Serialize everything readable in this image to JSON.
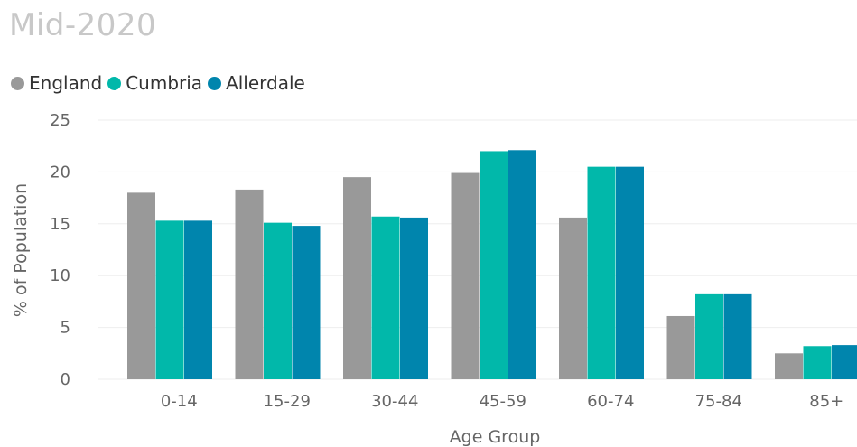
{
  "header": {
    "title": "Mid-2020"
  },
  "chart_data": {
    "type": "bar",
    "title": "Mid-2020",
    "xlabel": "Age Group",
    "ylabel": "% of Population",
    "ylim": [
      0,
      25
    ],
    "yticks": [
      0,
      5,
      10,
      15,
      20,
      25
    ],
    "grid": true,
    "legend_position": "top-left",
    "categories": [
      "0-14",
      "15-29",
      "30-44",
      "45-59",
      "60-74",
      "75-84",
      "85+"
    ],
    "series": [
      {
        "name": "England",
        "color": "#999999",
        "values": [
          18.0,
          18.3,
          19.5,
          19.9,
          15.6,
          6.1,
          2.5
        ]
      },
      {
        "name": "Cumbria",
        "color": "#01b8aa",
        "values": [
          15.3,
          15.1,
          15.7,
          22.0,
          20.5,
          8.2,
          3.2
        ]
      },
      {
        "name": "Allerdale",
        "color": "#0085ad",
        "values": [
          15.3,
          14.8,
          15.6,
          22.1,
          20.5,
          8.2,
          3.3
        ]
      }
    ]
  }
}
